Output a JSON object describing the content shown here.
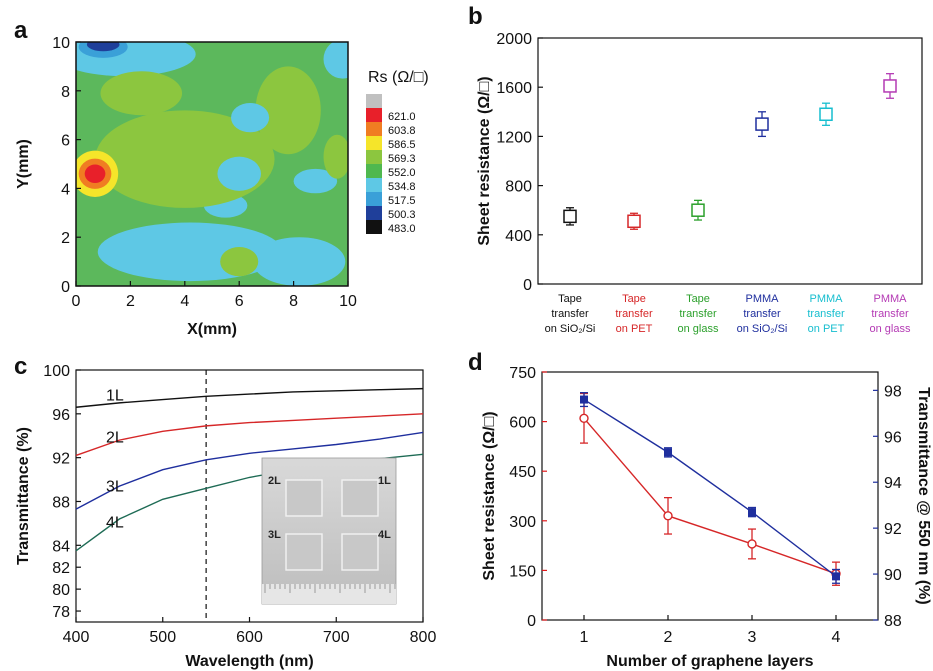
{
  "panels": {
    "a": "a",
    "b": "b",
    "c": "c",
    "d": "d"
  },
  "chart_data": [
    {
      "type": "heatmap",
      "panel": "a",
      "xlabel": "X(mm)",
      "ylabel": "Y(mm)",
      "xlim": [
        0,
        10
      ],
      "ylim": [
        0,
        10
      ],
      "x_ticks": [
        "0",
        "2",
        "4",
        "6",
        "8",
        "10"
      ],
      "y_ticks": [
        "0",
        "2",
        "4",
        "6",
        "8",
        "10"
      ],
      "legend_title": "Rs (Ω/□)",
      "legend_levels": [
        {
          "label": "",
          "color": "#c0c0c0"
        },
        {
          "label": "621.0",
          "color": "#e8202a"
        },
        {
          "label": "603.8",
          "color": "#f07d22"
        },
        {
          "label": "586.5",
          "color": "#f5e52a"
        },
        {
          "label": "569.3",
          "color": "#8cc63f"
        },
        {
          "label": "552.0",
          "color": "#4fb84f"
        },
        {
          "label": "534.8",
          "color": "#5ec8e5"
        },
        {
          "label": "517.5",
          "color": "#3aa0d8"
        },
        {
          "label": "500.3",
          "color": "#1f3f9a"
        },
        {
          "label": "483.0",
          "color": "#111111"
        }
      ],
      "background_color": "#5cb85c",
      "regions": [
        {
          "level": "534.8",
          "shape": "ellipse",
          "cx": 4.2,
          "cy": 1.4,
          "rx": 3.4,
          "ry": 1.2
        },
        {
          "level": "534.8",
          "shape": "ellipse",
          "cx": 8.2,
          "cy": 1.0,
          "rx": 1.7,
          "ry": 1.0
        },
        {
          "level": "534.8",
          "shape": "ellipse",
          "cx": 1.8,
          "cy": 9.5,
          "rx": 2.6,
          "ry": 0.9
        },
        {
          "level": "534.8",
          "shape": "ellipse",
          "cx": 5.5,
          "cy": 3.3,
          "rx": 0.8,
          "ry": 0.5
        },
        {
          "level": "534.8",
          "shape": "ellipse",
          "cx": 8.8,
          "cy": 4.3,
          "rx": 0.8,
          "ry": 0.5
        },
        {
          "level": "534.8",
          "shape": "ellipse",
          "cx": 9.8,
          "cy": 9.3,
          "rx": 0.7,
          "ry": 0.8
        },
        {
          "level": "569.3",
          "shape": "ellipse",
          "cx": 4.0,
          "cy": 5.2,
          "rx": 3.3,
          "ry": 2.0
        },
        {
          "level": "569.3",
          "shape": "ellipse",
          "cx": 7.8,
          "cy": 7.2,
          "rx": 1.2,
          "ry": 1.8
        },
        {
          "level": "569.3",
          "shape": "ellipse",
          "cx": 2.4,
          "cy": 7.9,
          "rx": 1.5,
          "ry": 0.9
        },
        {
          "level": "569.3",
          "shape": "ellipse",
          "cx": 6.0,
          "cy": 1.0,
          "rx": 0.7,
          "ry": 0.6
        },
        {
          "level": "569.3",
          "shape": "ellipse",
          "cx": 9.6,
          "cy": 5.3,
          "rx": 0.5,
          "ry": 0.9
        },
        {
          "level": "534.8",
          "shape": "ellipse",
          "cx": 6.0,
          "cy": 4.6,
          "rx": 0.8,
          "ry": 0.7
        },
        {
          "level": "534.8",
          "shape": "ellipse",
          "cx": 6.4,
          "cy": 6.9,
          "rx": 0.7,
          "ry": 0.6
        },
        {
          "level": "517.5",
          "shape": "ellipse",
          "cx": 1.0,
          "cy": 9.8,
          "rx": 0.9,
          "ry": 0.45
        },
        {
          "level": "500.3",
          "shape": "ellipse",
          "cx": 1.0,
          "cy": 9.9,
          "rx": 0.6,
          "ry": 0.28
        },
        {
          "level": "586.5",
          "shape": "ellipse",
          "cx": 0.7,
          "cy": 4.6,
          "rx": 0.85,
          "ry": 0.95
        },
        {
          "level": "603.8",
          "shape": "ellipse",
          "cx": 0.7,
          "cy": 4.6,
          "rx": 0.6,
          "ry": 0.62
        },
        {
          "level": "621.0",
          "shape": "ellipse",
          "cx": 0.7,
          "cy": 4.6,
          "rx": 0.38,
          "ry": 0.38
        }
      ]
    },
    {
      "type": "scatter",
      "panel": "b",
      "ylabel": "Sheet resistance (Ω/□)",
      "ylim": [
        0,
        2000
      ],
      "y_ticks": [
        "0",
        "400",
        "800",
        "1200",
        "1600",
        "2000"
      ],
      "categories": [
        {
          "lines": [
            "Tape",
            "transfer",
            "on SiO₂/Si"
          ],
          "color": "#111111",
          "value": 550,
          "err": 70
        },
        {
          "lines": [
            "Tape",
            "transfer",
            "on PET"
          ],
          "color": "#d62728",
          "value": 510,
          "err": 65
        },
        {
          "lines": [
            "Tape",
            "transfer",
            "on glass"
          ],
          "color": "#2ca02c",
          "value": 600,
          "err": 80
        },
        {
          "lines": [
            "PMMA",
            "transfer",
            "on SiO₂/Si"
          ],
          "color": "#1f2f9e",
          "value": 1300,
          "err": 100
        },
        {
          "lines": [
            "PMMA",
            "transfer",
            "on PET"
          ],
          "color": "#17becf",
          "value": 1380,
          "err": 90
        },
        {
          "lines": [
            "PMMA",
            "transfer",
            "on glass"
          ],
          "color": "#b43ab4",
          "value": 1610,
          "err": 100
        }
      ]
    },
    {
      "type": "line",
      "panel": "c",
      "xlabel": "Wavelength (nm)",
      "ylabel": "Transmittance (%)",
      "xlim": [
        400,
        800
      ],
      "ylim": [
        77,
        100
      ],
      "x_ticks": [
        "400",
        "500",
        "600",
        "700",
        "800"
      ],
      "y_ticks": [
        "78",
        "80",
        "82",
        "84",
        "88",
        "92",
        "96",
        "100"
      ],
      "y_tick_values": [
        78,
        80,
        82,
        84,
        88,
        92,
        96,
        100
      ],
      "vline_x": 550,
      "x": [
        400,
        450,
        500,
        550,
        600,
        650,
        700,
        750,
        800
      ],
      "series": [
        {
          "name": "1L",
          "color": "#111111",
          "values": [
            96.6,
            97.0,
            97.3,
            97.6,
            97.8,
            98.0,
            98.1,
            98.2,
            98.3
          ]
        },
        {
          "name": "2L",
          "color": "#d62728",
          "values": [
            92.2,
            93.6,
            94.4,
            94.9,
            95.2,
            95.4,
            95.6,
            95.8,
            96.0
          ]
        },
        {
          "name": "3L",
          "color": "#1f2f9e",
          "values": [
            87.3,
            89.4,
            90.9,
            91.8,
            92.4,
            92.8,
            93.2,
            93.7,
            94.3
          ]
        },
        {
          "name": "4L",
          "color": "#1e6b55",
          "values": [
            83.5,
            86.4,
            88.2,
            89.2,
            90.2,
            90.9,
            91.4,
            91.9,
            92.3
          ]
        }
      ],
      "inset": {
        "labels": [
          "2L",
          "1L",
          "3L",
          "4L"
        ]
      }
    },
    {
      "type": "line",
      "panel": "d",
      "xlabel": "Number of graphene layers",
      "ylabel": "Sheet resistance (Ω/□)",
      "ylabel_color": "#e31a1c",
      "y2label": "Transmittance @ 550 nm (%)",
      "y2label_color": "#1f2f9e",
      "xlim": [
        0.5,
        4.5
      ],
      "ylim": [
        0,
        750
      ],
      "y2lim": [
        88,
        98.8
      ],
      "x_ticks": [
        "1",
        "2",
        "3",
        "4"
      ],
      "y_ticks": [
        "0",
        "150",
        "300",
        "450",
        "600",
        "750"
      ],
      "y2_ticks": [
        "88",
        "90",
        "92",
        "94",
        "96",
        "98"
      ],
      "x": [
        1,
        2,
        3,
        4
      ],
      "series": [
        {
          "axis": "left",
          "color": "#d62728",
          "marker": "circle",
          "values": [
            610,
            315,
            230,
            140
          ],
          "err": [
            75,
            55,
            45,
            35
          ]
        },
        {
          "axis": "right",
          "color": "#1f2f9e",
          "marker": "square",
          "values": [
            97.6,
            95.3,
            92.7,
            89.9
          ],
          "err": [
            0.3,
            0.2,
            0.2,
            0.3
          ]
        }
      ]
    }
  ]
}
